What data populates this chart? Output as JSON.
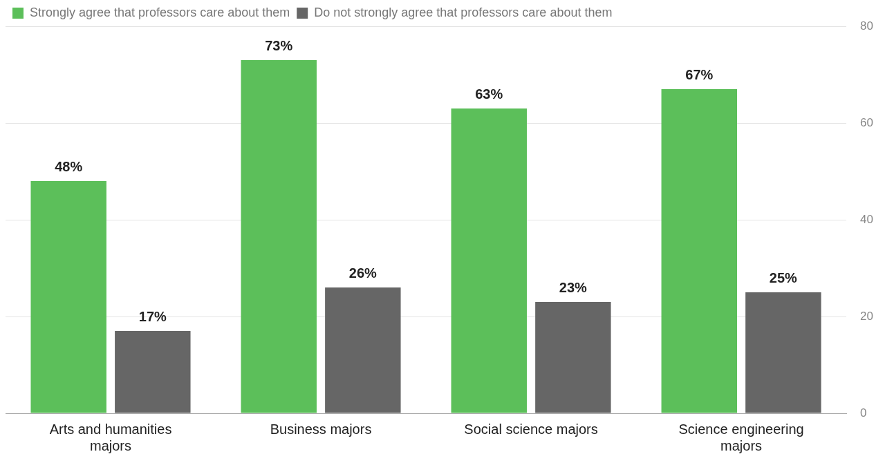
{
  "chart_data": {
    "type": "bar",
    "categories": [
      "Arts and humanities majors",
      "Business majors",
      "Social science majors",
      "Science engineering majors"
    ],
    "series": [
      {
        "name": "Strongly agree that professors care about them",
        "color": "#5cbf5a",
        "values": [
          48,
          73,
          63,
          67
        ],
        "value_labels": [
          "48%",
          "73%",
          "63%",
          "67%"
        ]
      },
      {
        "name": "Do not strongly agree that professors care about them",
        "color": "#666666",
        "values": [
          17,
          26,
          23,
          25
        ],
        "value_labels": [
          "17%",
          "26%",
          "23%",
          "25%"
        ]
      }
    ],
    "ylim": [
      0,
      80
    ],
    "yticks": [
      0,
      20,
      40,
      60,
      80
    ],
    "grid": "y",
    "legend": "top left"
  }
}
